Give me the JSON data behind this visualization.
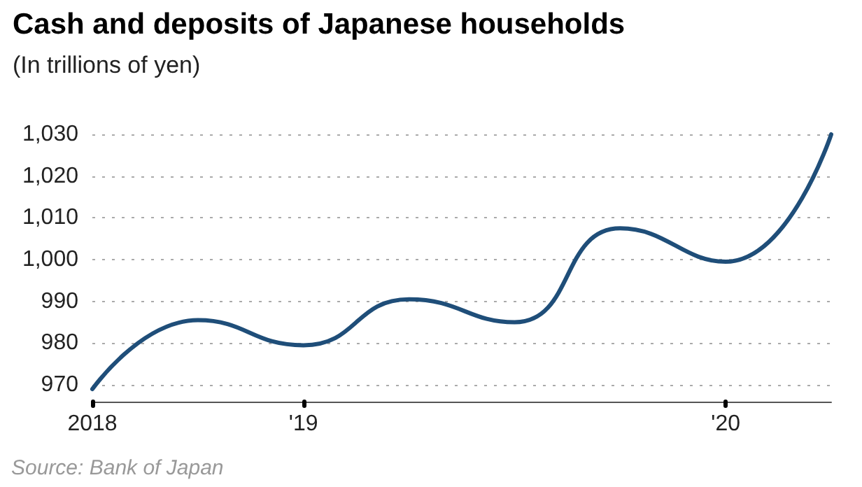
{
  "chart_data": {
    "type": "line",
    "title": "Cash and deposits of Japanese households",
    "subtitle": "(In trillions of yen)",
    "categories": [
      "2018",
      null,
      "'19",
      null,
      null,
      null,
      "'20",
      null
    ],
    "series": [
      {
        "color": "#1f4e79",
        "values": [
          969,
          985.5,
          979.5,
          990.5,
          985,
          1007.5,
          999.5,
          1030
        ]
      }
    ],
    "ylim": [
      966,
      1030
    ],
    "yticks": [
      970,
      980,
      990,
      {
        "value": 1000,
        "label": "1,000"
      },
      {
        "value": 1010,
        "label": "1,010"
      },
      {
        "value": 1020,
        "label": "1,020"
      },
      {
        "value": 1030,
        "label": "1,030"
      }
    ],
    "grid": "y",
    "marker": "none",
    "line_style": "solid",
    "annotations": [
      "Source: Bank of Japan"
    ]
  }
}
